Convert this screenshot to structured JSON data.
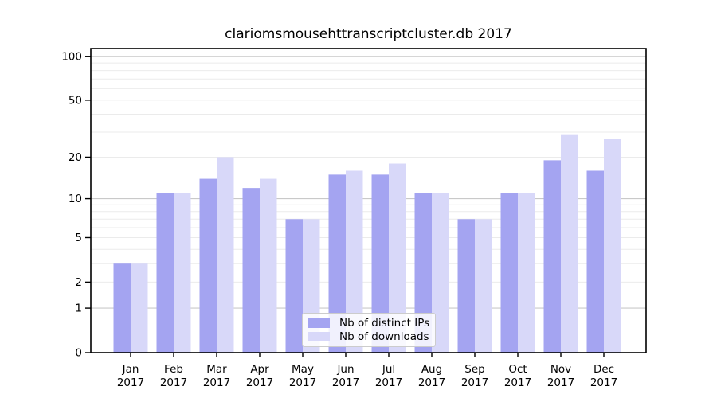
{
  "chart_data": {
    "type": "bar",
    "title": "clariomsmousehttranscriptcluster.db 2017",
    "xlabel": "",
    "ylabel": "",
    "categories": [
      "Jan",
      "Feb",
      "Mar",
      "Apr",
      "May",
      "Jun",
      "Jul",
      "Aug",
      "Sep",
      "Oct",
      "Nov",
      "Dec"
    ],
    "xtick_year": "2017",
    "series": [
      {
        "name": "Nb of distinct IPs",
        "color": "#a4a4f1",
        "values": [
          3,
          11,
          14,
          12,
          7,
          15,
          15,
          11,
          7,
          11,
          19,
          16
        ]
      },
      {
        "name": "Nb of downloads",
        "color": "#d8d8f9",
        "values": [
          3,
          11,
          20,
          14,
          7,
          16,
          18,
          11,
          7,
          11,
          29,
          27
        ]
      }
    ],
    "yscale": "log1p",
    "ylim": [
      0,
      113
    ],
    "ytick_values": [
      0,
      1,
      2,
      5,
      10,
      20,
      50,
      100
    ],
    "ytick_labels": [
      "0",
      "1",
      "2",
      "5",
      "10",
      "20",
      "50",
      "100"
    ],
    "major_grid_values": [
      1,
      10,
      100
    ],
    "minor_grid_values": [
      2,
      3,
      4,
      5,
      6,
      7,
      8,
      9,
      20,
      30,
      40,
      50,
      60,
      70,
      80,
      90
    ],
    "grid": "on",
    "legend_position": "lower center",
    "colors": {
      "background": "#ffffff",
      "spine": "#000000",
      "major_grid": "#c9c9c9",
      "minor_grid": "#ebebeb",
      "tick_text": "#000000"
    }
  }
}
